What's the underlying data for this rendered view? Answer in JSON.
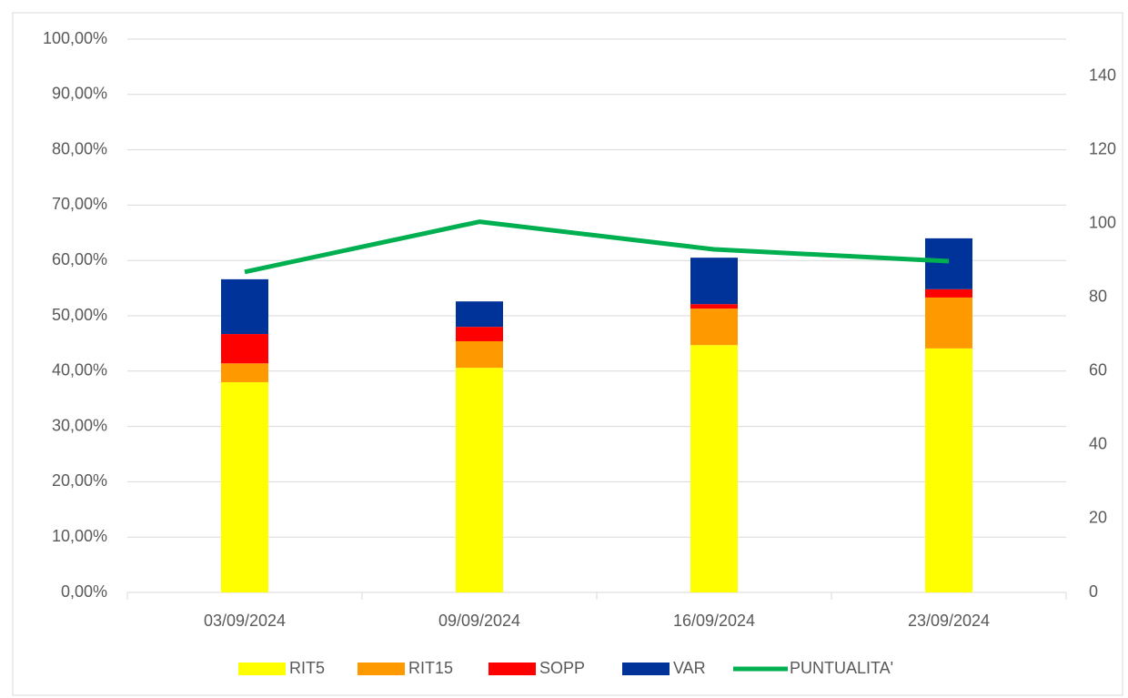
{
  "chart_data": {
    "type": "bar-line",
    "categories": [
      "03/09/2024",
      "09/09/2024",
      "16/09/2024",
      "23/09/2024"
    ],
    "series": [
      {
        "name": "RIT5",
        "type": "bar",
        "color": "#ffff00",
        "values": [
          38.0,
          40.6,
          44.7,
          44.1
        ]
      },
      {
        "name": "RIT15",
        "type": "bar",
        "color": "#ff9900",
        "values": [
          3.4,
          4.8,
          6.6,
          9.2
        ]
      },
      {
        "name": "SOPP",
        "type": "bar",
        "color": "#ff0000",
        "values": [
          5.3,
          2.6,
          0.8,
          1.5
        ]
      },
      {
        "name": "VAR",
        "type": "bar",
        "color": "#003399",
        "values": [
          9.9,
          4.6,
          8.4,
          9.2
        ]
      },
      {
        "name": "PUNTUALITA'",
        "type": "line",
        "axis": "y2",
        "color": "#00b050",
        "values": [
          86.9,
          100.5,
          93.0,
          89.8
        ]
      }
    ],
    "ylim": [
      0,
      100
    ],
    "yticks": [
      {
        "value": 0,
        "label": "0,00%"
      },
      {
        "value": 10,
        "label": "10,00%"
      },
      {
        "value": 20,
        "label": "20,00%"
      },
      {
        "value": 30,
        "label": "30,00%"
      },
      {
        "value": 40,
        "label": "40,00%"
      },
      {
        "value": 50,
        "label": "50,00%"
      },
      {
        "value": 60,
        "label": "60,00%"
      },
      {
        "value": 70,
        "label": "70,00%"
      },
      {
        "value": 80,
        "label": "80,00%"
      },
      {
        "value": 90,
        "label": "90,00%"
      },
      {
        "value": 100,
        "label": "100,00%"
      }
    ],
    "y2lim": [
      0,
      150
    ],
    "y2ticks": [
      0,
      20,
      40,
      60,
      80,
      100,
      120,
      140
    ],
    "grid": true,
    "legend": "bottom"
  }
}
